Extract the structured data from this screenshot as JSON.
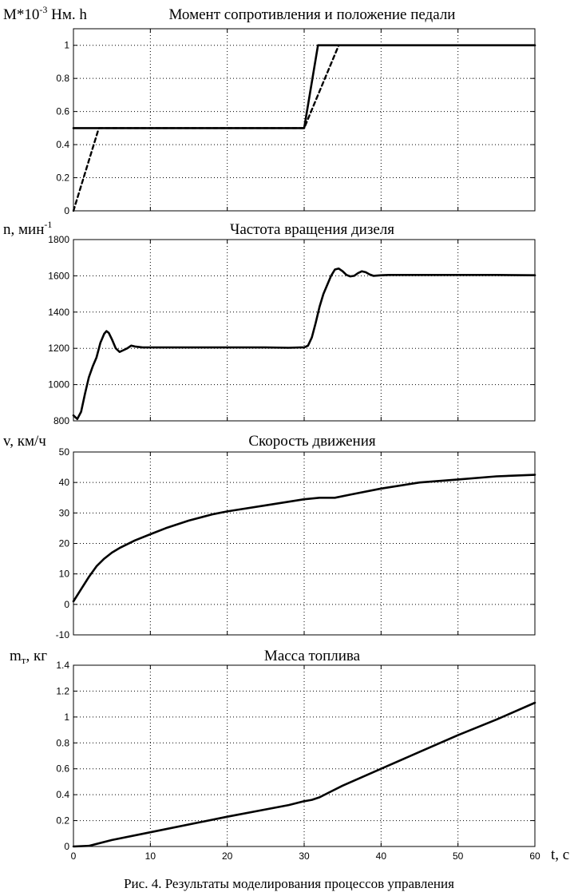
{
  "figure": {
    "caption": "Рис. 4. Результаты моделирования процессов управления",
    "x_axis_label": "t, с"
  },
  "chart_data": [
    {
      "type": "line",
      "title": "Момент сопротивления и положение педали",
      "ylabel": {
        "base": "M*10",
        "sup": "-3",
        "rest": " Нм. h"
      },
      "xlim": [
        0,
        60
      ],
      "ylim": [
        0,
        1.1
      ],
      "x_ticks": [
        0,
        10,
        20,
        30,
        40,
        50,
        60
      ],
      "y_ticks": [
        0,
        0.2,
        0.4,
        0.6,
        0.8,
        1
      ],
      "grid": true,
      "series": [
        {
          "style": "solid",
          "x": [
            0,
            0.2,
            30,
            31.8,
            60
          ],
          "y": [
            0.5,
            0.5,
            0.5,
            1.0,
            1.0
          ]
        },
        {
          "style": "dashed",
          "x": [
            0,
            3.3,
            30,
            34.5
          ],
          "y": [
            0,
            0.5,
            0.5,
            1.0
          ]
        }
      ]
    },
    {
      "type": "line",
      "title": "Частота вращения дизеля",
      "ylabel": {
        "base": "n, мин",
        "sup": "-1",
        "rest": ""
      },
      "xlim": [
        0,
        60
      ],
      "ylim": [
        800,
        1800
      ],
      "x_ticks": [
        0,
        10,
        20,
        30,
        40,
        50,
        60
      ],
      "y_ticks": [
        800,
        1000,
        1200,
        1400,
        1600,
        1800
      ],
      "grid": true,
      "series": [
        {
          "style": "solid",
          "x": [
            0,
            0.5,
            1,
            1.5,
            2,
            2.5,
            3,
            3.5,
            4,
            4.3,
            4.6,
            5,
            5.5,
            6,
            6.5,
            7,
            7.5,
            8,
            9,
            10,
            15,
            20,
            25,
            28,
            29.5,
            30,
            30.5,
            31,
            31.5,
            32,
            32.5,
            33,
            33.5,
            34,
            34.5,
            35,
            35.5,
            36,
            36.5,
            37,
            37.5,
            38,
            38.5,
            39,
            40,
            41,
            45,
            50,
            55,
            60
          ],
          "y": [
            830,
            810,
            850,
            950,
            1040,
            1100,
            1150,
            1230,
            1280,
            1295,
            1285,
            1250,
            1200,
            1180,
            1190,
            1200,
            1215,
            1210,
            1205,
            1205,
            1205,
            1205,
            1205,
            1203,
            1205,
            1205,
            1215,
            1260,
            1340,
            1430,
            1500,
            1550,
            1600,
            1635,
            1640,
            1625,
            1605,
            1597,
            1600,
            1615,
            1625,
            1620,
            1608,
            1600,
            1603,
            1605,
            1605,
            1605,
            1605,
            1603
          ]
        }
      ]
    },
    {
      "type": "line",
      "title": "Скорость движения",
      "ylabel": {
        "base": "v, км/ч",
        "sup": "",
        "rest": ""
      },
      "xlim": [
        0,
        60
      ],
      "ylim": [
        -10,
        50
      ],
      "x_ticks": [
        0,
        10,
        20,
        30,
        40,
        50,
        60
      ],
      "y_ticks": [
        -10,
        0,
        10,
        20,
        30,
        40,
        50
      ],
      "grid": true,
      "series": [
        {
          "style": "solid",
          "x": [
            0,
            1,
            2,
            3,
            4,
            5,
            6,
            8,
            10,
            12,
            15,
            18,
            20,
            25,
            30,
            32,
            34,
            36,
            40,
            45,
            50,
            55,
            60
          ],
          "y": [
            1,
            5,
            9,
            12.5,
            15,
            17,
            18.5,
            21,
            23,
            25,
            27.5,
            29.5,
            30.5,
            32.5,
            34.5,
            35,
            35,
            36,
            38,
            40,
            41,
            42,
            42.5
          ]
        }
      ]
    },
    {
      "type": "line",
      "title": "Масса топлива",
      "ylabel": {
        "base": "m",
        "sub": "т",
        "sup": "",
        "rest": ", кг"
      },
      "xlim": [
        0,
        60
      ],
      "ylim": [
        0,
        1.4
      ],
      "x_ticks": [
        0,
        10,
        20,
        30,
        40,
        50,
        60
      ],
      "y_ticks": [
        0,
        0.2,
        0.4,
        0.6,
        0.8,
        1,
        1.2,
        1.4
      ],
      "grid": true,
      "series": [
        {
          "style": "solid",
          "x": [
            0,
            2,
            5,
            10,
            20,
            28,
            30,
            31,
            32,
            33,
            35,
            40,
            45,
            50,
            55,
            60
          ],
          "y": [
            0,
            0.005,
            0.05,
            0.11,
            0.23,
            0.32,
            0.35,
            0.36,
            0.38,
            0.41,
            0.47,
            0.6,
            0.73,
            0.86,
            0.98,
            1.11
          ]
        }
      ]
    }
  ]
}
